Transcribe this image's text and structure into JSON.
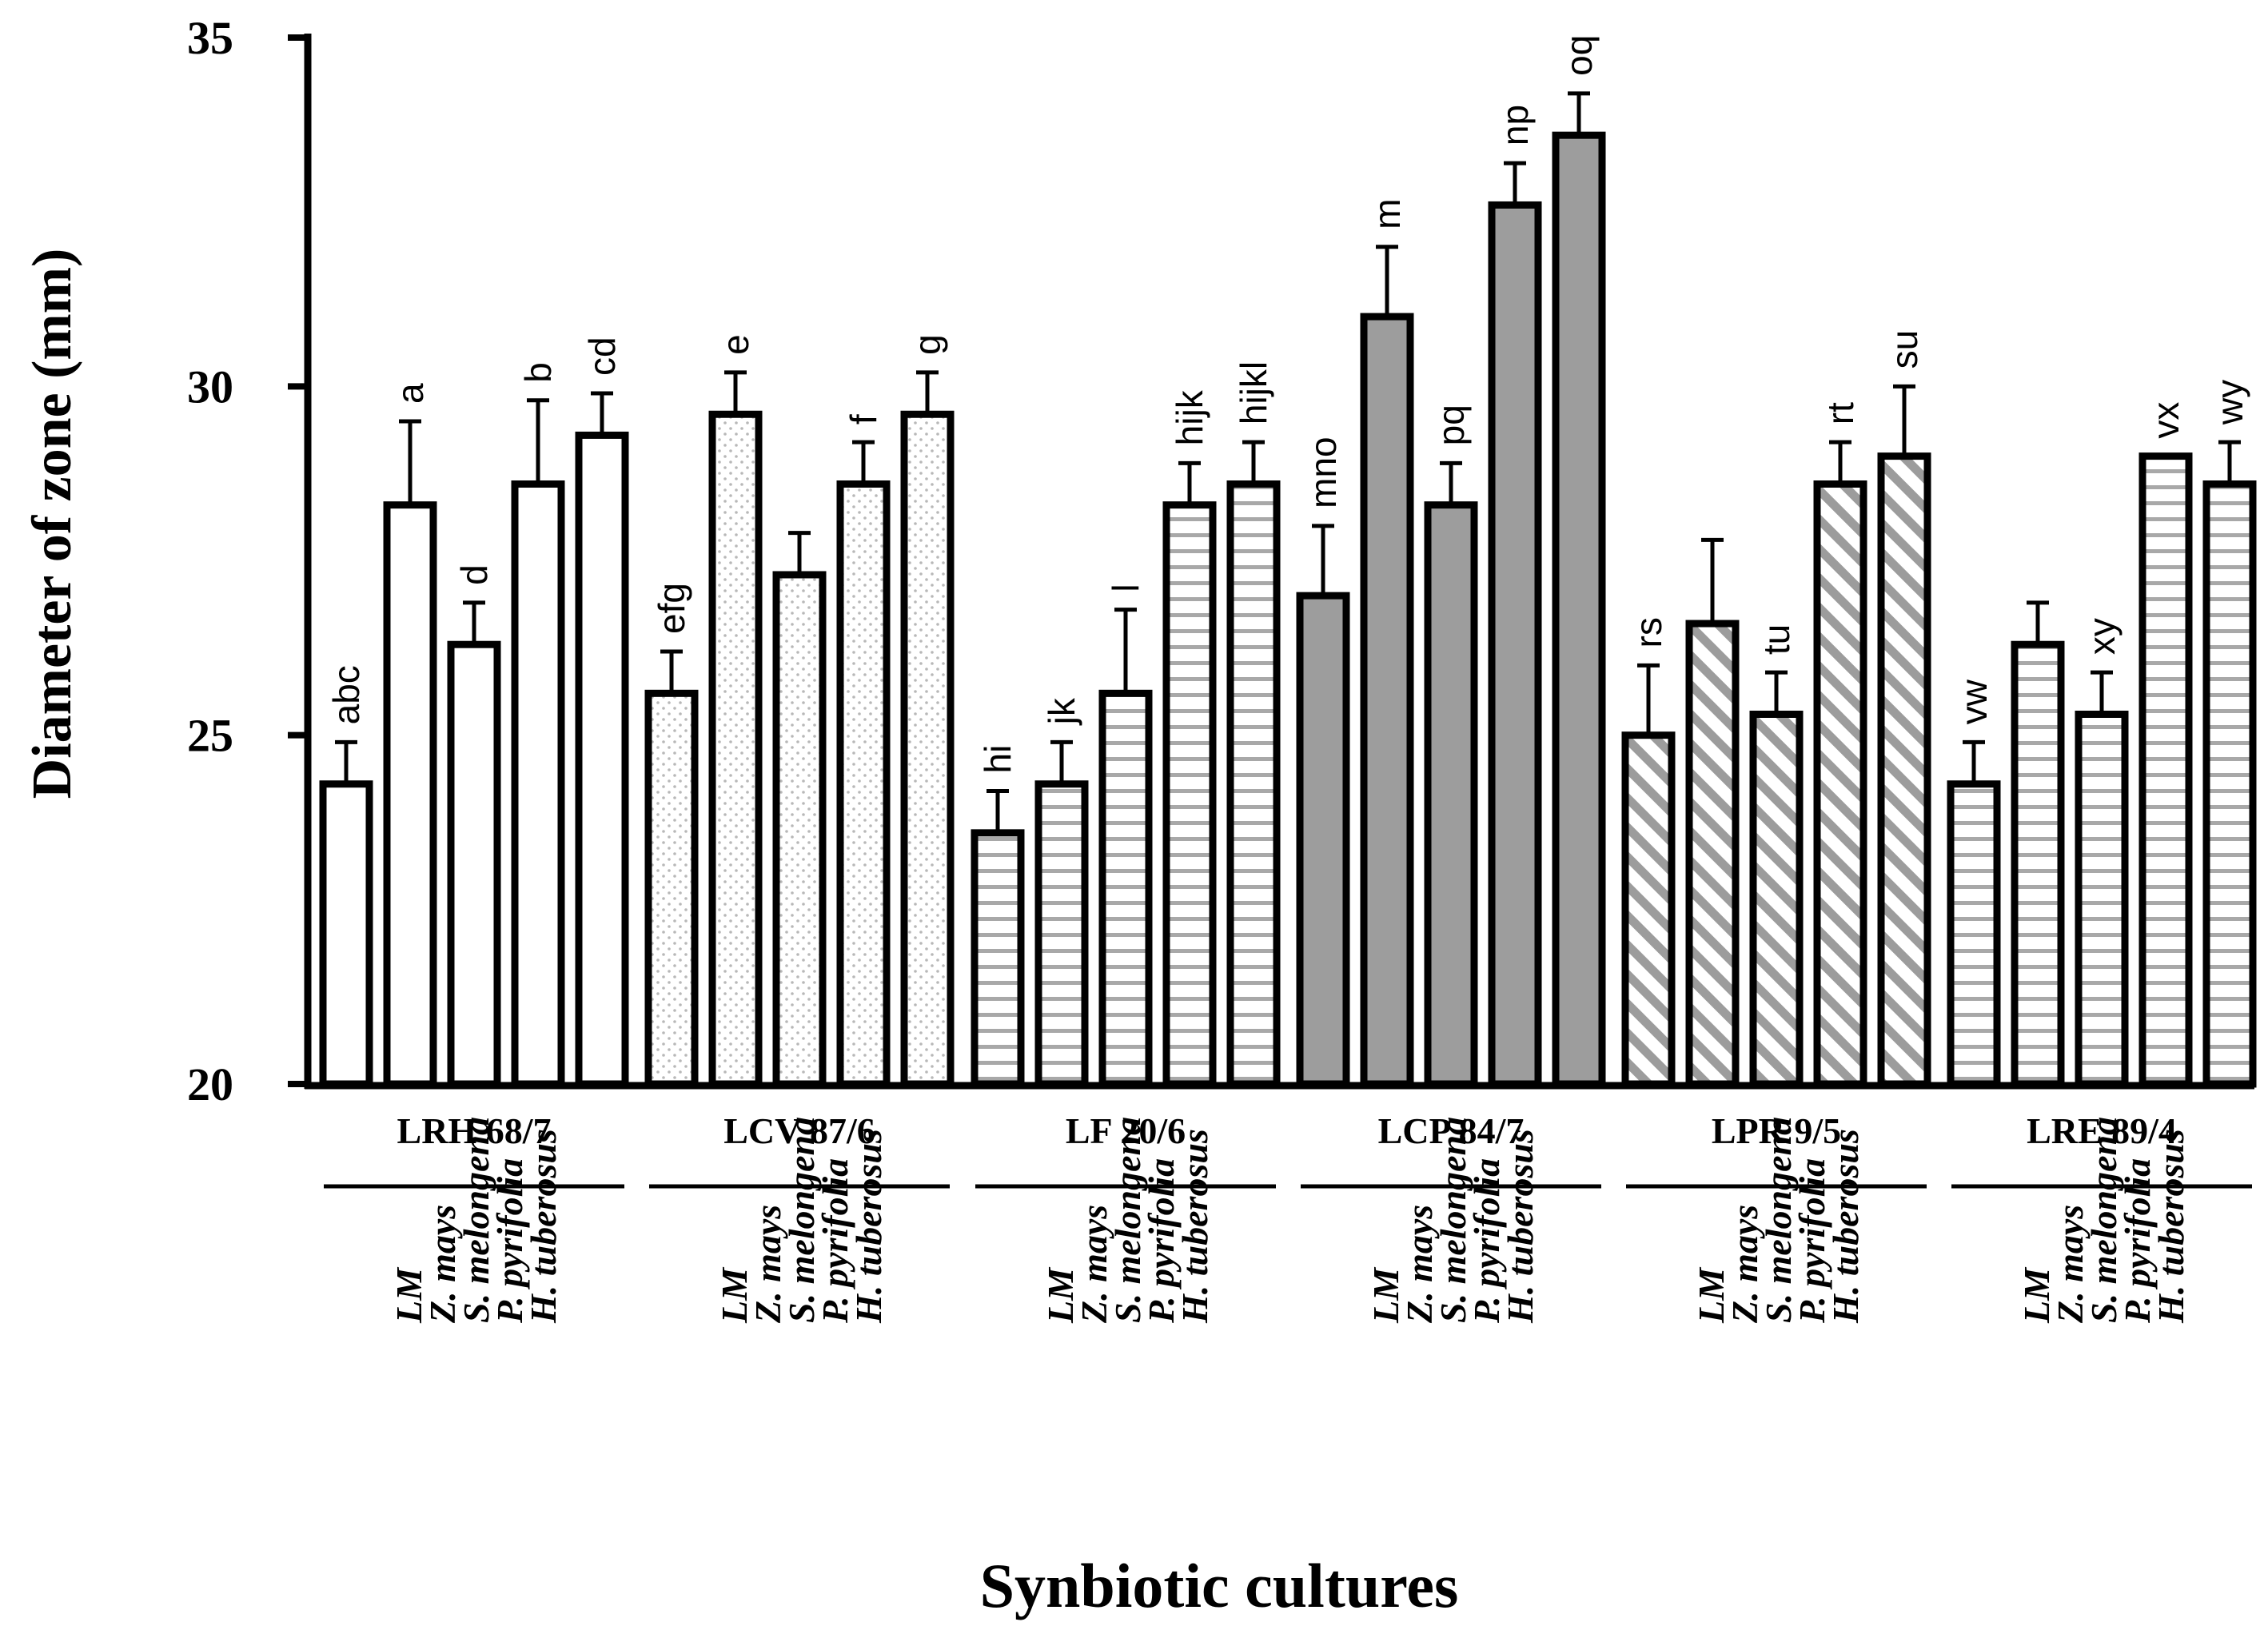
{
  "chart_data": {
    "type": "bar",
    "title": "",
    "ylabel": "Diameter of zone (mm)",
    "xlabel": "Synbiotic cultures",
    "ylim": [
      20,
      35
    ],
    "yticks": [
      20,
      25,
      30,
      35
    ],
    "categories": [
      "LM",
      "Z. mays",
      "S. melongena",
      "P. pyrifolia",
      "H. tuberosus"
    ],
    "groups": [
      {
        "name": "LRH 68/7",
        "pattern": "white",
        "values": [
          24.3,
          28.3,
          26.3,
          28.6,
          29.3
        ],
        "errors": [
          0.6,
          1.2,
          0.6,
          1.2,
          0.6
        ],
        "letters": [
          "abc",
          "a",
          "d",
          "b",
          "cd"
        ]
      },
      {
        "name": "LCV 87/6",
        "pattern": "dots",
        "values": [
          25.6,
          29.6,
          27.3,
          28.6,
          29.6
        ],
        "errors": [
          0.6,
          0.6,
          0.6,
          0.6,
          0.6
        ],
        "letters": [
          "efg",
          "e",
          "",
          "f",
          "g"
        ]
      },
      {
        "name": "LF 20/6",
        "pattern": "hlines",
        "values": [
          23.6,
          24.3,
          25.6,
          28.3,
          28.6
        ],
        "errors": [
          0.6,
          0.6,
          1.2,
          0.6,
          0.6
        ],
        "letters": [
          "hi",
          "jk",
          "l",
          "hijk",
          "hijkl"
        ]
      },
      {
        "name": "LCP 84/7",
        "pattern": "gray",
        "values": [
          27.0,
          31.0,
          28.3,
          32.6,
          33.6
        ],
        "errors": [
          1.0,
          1.0,
          0.6,
          0.6,
          0.6
        ],
        "letters": [
          "mno",
          "m",
          "pq",
          "np",
          "oq"
        ]
      },
      {
        "name": "LPR 9/5",
        "pattern": "diag",
        "values": [
          25.0,
          26.6,
          25.3,
          28.6,
          29.0
        ],
        "errors": [
          1.0,
          1.2,
          0.6,
          0.6,
          1.0
        ],
        "letters": [
          "rs",
          "",
          "tu",
          "rt",
          "su"
        ]
      },
      {
        "name": "LRE 89/4",
        "pattern": "hlines",
        "values": [
          24.3,
          26.3,
          25.3,
          29.0,
          28.6
        ],
        "errors": [
          0.6,
          0.6,
          0.6,
          0.0,
          0.6
        ],
        "letters": [
          "vw",
          "",
          "xy",
          "vx",
          "wy"
        ]
      }
    ]
  }
}
